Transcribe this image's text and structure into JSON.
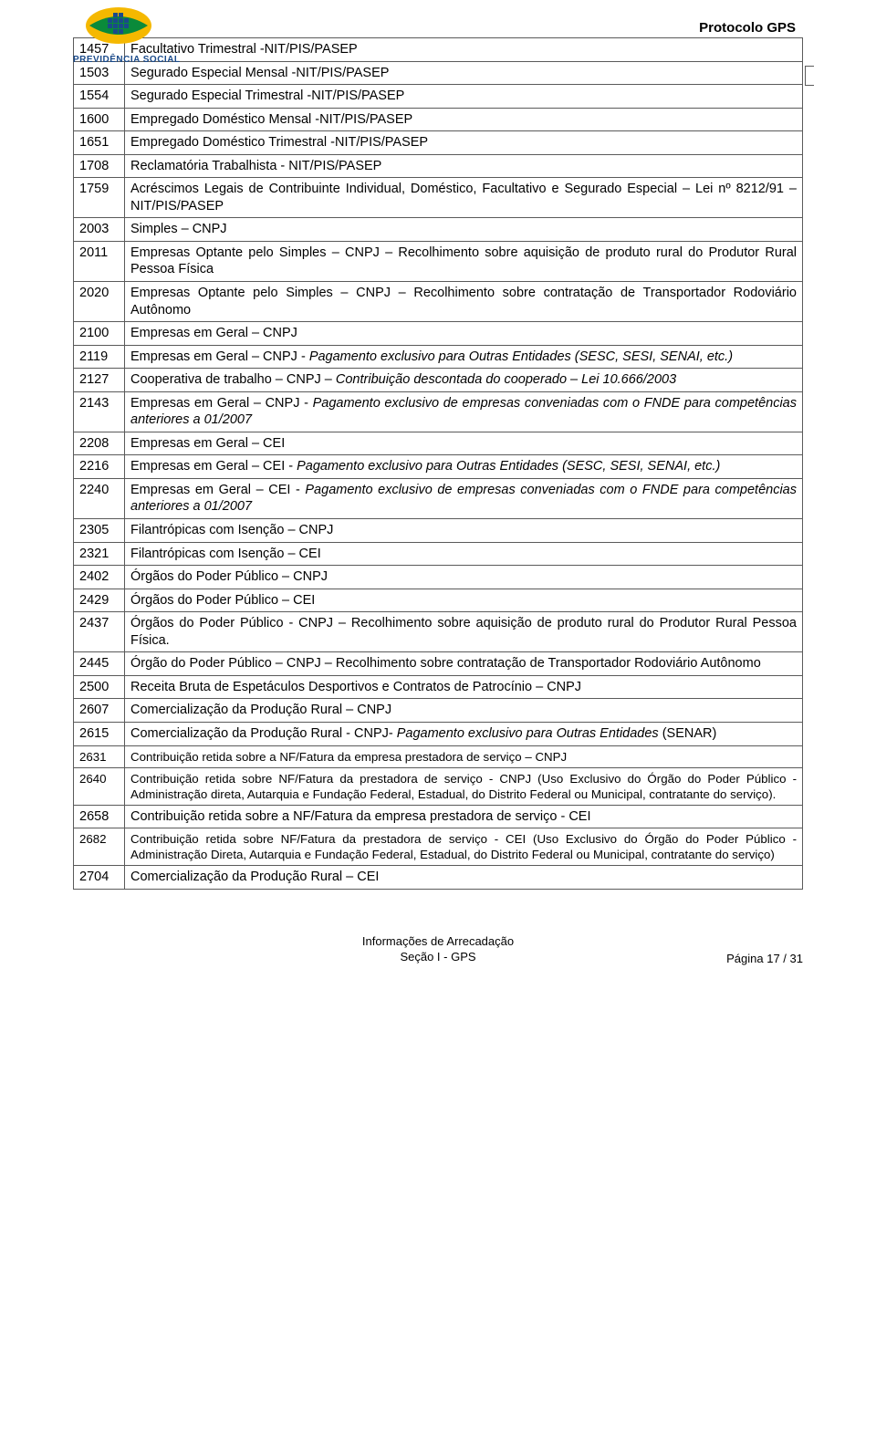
{
  "header": {
    "protocol": "Protocolo GPS",
    "logo_label": "PREVIDÊNCIA SOCIAL"
  },
  "table": {
    "rows": [
      {
        "code": "1457",
        "desc": "Facultativo Trimestral -NIT/PIS/PASEP"
      },
      {
        "code": "1503",
        "desc": "Segurado Especial Mensal -NIT/PIS/PASEP"
      },
      {
        "code": "1554",
        "desc": "Segurado Especial Trimestral -NIT/PIS/PASEP"
      },
      {
        "code": "1600",
        "desc": "Empregado Doméstico Mensal -NIT/PIS/PASEP"
      },
      {
        "code": "1651",
        "desc": "Empregado Doméstico Trimestral -NIT/PIS/PASEP"
      },
      {
        "code": "1708",
        "desc": "Reclamatória Trabalhista - NIT/PIS/PASEP"
      },
      {
        "code": "1759",
        "desc": "Acréscimos Legais de Contribuinte Individual, Doméstico, Facultativo e Segurado Especial – Lei nº 8212/91 – NIT/PIS/PASEP"
      },
      {
        "code": "2003",
        "desc": "Simples – CNPJ"
      },
      {
        "code": "2011",
        "desc": "Empresas Optante pelo Simples – CNPJ – Recolhimento sobre aquisição de produto rural do Produtor Rural Pessoa Física"
      },
      {
        "code": "2020",
        "desc": "Empresas Optante pelo Simples – CNPJ – Recolhimento sobre contratação de Transportador Rodoviário Autônomo"
      },
      {
        "code": "2100",
        "desc": "Empresas em Geral – CNPJ"
      },
      {
        "code": "2119",
        "desc_html": "Empresas em Geral – CNPJ - <span class=\"italic\">Pagamento exclusivo para Outras Entidades (SESC, SESI, SENAI, etc.)</span>"
      },
      {
        "code": "2127",
        "desc_html": "Cooperativa de trabalho – CNPJ – <span class=\"italic\">Contribuição descontada do cooperado – Lei 10.666/2003</span>"
      },
      {
        "code": "2143",
        "desc_html": "Empresas em Geral – CNPJ - <span class=\"italic\">Pagamento exclusivo de empresas conveniadas com o FNDE para competências anteriores a 01/2007</span>"
      },
      {
        "code": "2208",
        "desc": "Empresas em Geral – CEI"
      },
      {
        "code": "2216",
        "desc_html": "Empresas em Geral – CEI - <span class=\"italic\">Pagamento exclusivo para Outras Entidades (SESC, SESI, SENAI, etc.)</span>"
      },
      {
        "code": "2240",
        "desc_html": "Empresas em Geral – CEI - <span class=\"italic\">Pagamento exclusivo de empresas conveniadas com o FNDE para competências anteriores a 01/2007</span>"
      },
      {
        "code": "2305",
        "desc": "Filantrópicas com Isenção – CNPJ"
      },
      {
        "code": "2321",
        "desc": "Filantrópicas com Isenção – CEI"
      },
      {
        "code": "2402",
        "desc": "Órgãos do Poder Público – CNPJ"
      },
      {
        "code": "2429",
        "desc": "Órgãos do Poder Público – CEI"
      },
      {
        "code": "2437",
        "desc": "Órgãos do Poder Público - CNPJ – Recolhimento sobre aquisição de produto rural do Produtor Rural Pessoa Física."
      },
      {
        "code": "2445",
        "desc": "Órgão do Poder Público – CNPJ – Recolhimento sobre contratação de Transportador Rodoviário Autônomo"
      },
      {
        "code": "2500",
        "desc": "Receita Bruta de Espetáculos Desportivos e Contratos de Patrocínio – CNPJ"
      },
      {
        "code": "2607",
        "desc": "Comercialização da Produção Rural – CNPJ"
      },
      {
        "code": "2615",
        "desc_html": "Comercialização da Produção Rural - CNPJ- <span class=\"italic\">Pagamento exclusivo para Outras Entidades</span> (SENAR)"
      },
      {
        "code": "2631",
        "desc": "Contribuição retida sobre a NF/Fatura da empresa prestadora de serviço – CNPJ"
      },
      {
        "code": "2640",
        "desc": "Contribuição retida sobre NF/Fatura da prestadora de serviço - CNPJ (Uso Exclusivo do Órgão do Poder Público - Administração direta, Autarquia e Fundação Federal, Estadual, do Distrito Federal ou Municipal, contratante do serviço)."
      },
      {
        "code": "2658",
        "desc": "Contribuição retida sobre a NF/Fatura da empresa prestadora de serviço - CEI"
      },
      {
        "code": "2682",
        "desc": "Contribuição retida sobre NF/Fatura da prestadora de serviço - CEI (Uso Exclusivo do Órgão do Poder Público - Administração Direta, Autarquia e Fundação Federal, Estadual, do Distrito Federal ou Municipal, contratante do serviço)"
      },
      {
        "code": "2704",
        "desc": "Comercialização da Produção Rural – CEI"
      }
    ],
    "row_fontsizes_small": [
      "2631",
      "2640",
      "2682"
    ]
  },
  "footer": {
    "line1": "Informações de Arrecadação",
    "line2": "Seção I -  GPS",
    "page": "Página  17 / 31"
  },
  "style": {
    "border_color": "#5a5a5a",
    "text_color": "#000000",
    "body_fontsize": 14.5,
    "small_fontsize": 13.3,
    "footer_fontsize": 13,
    "protocol_fontsize": 15
  }
}
